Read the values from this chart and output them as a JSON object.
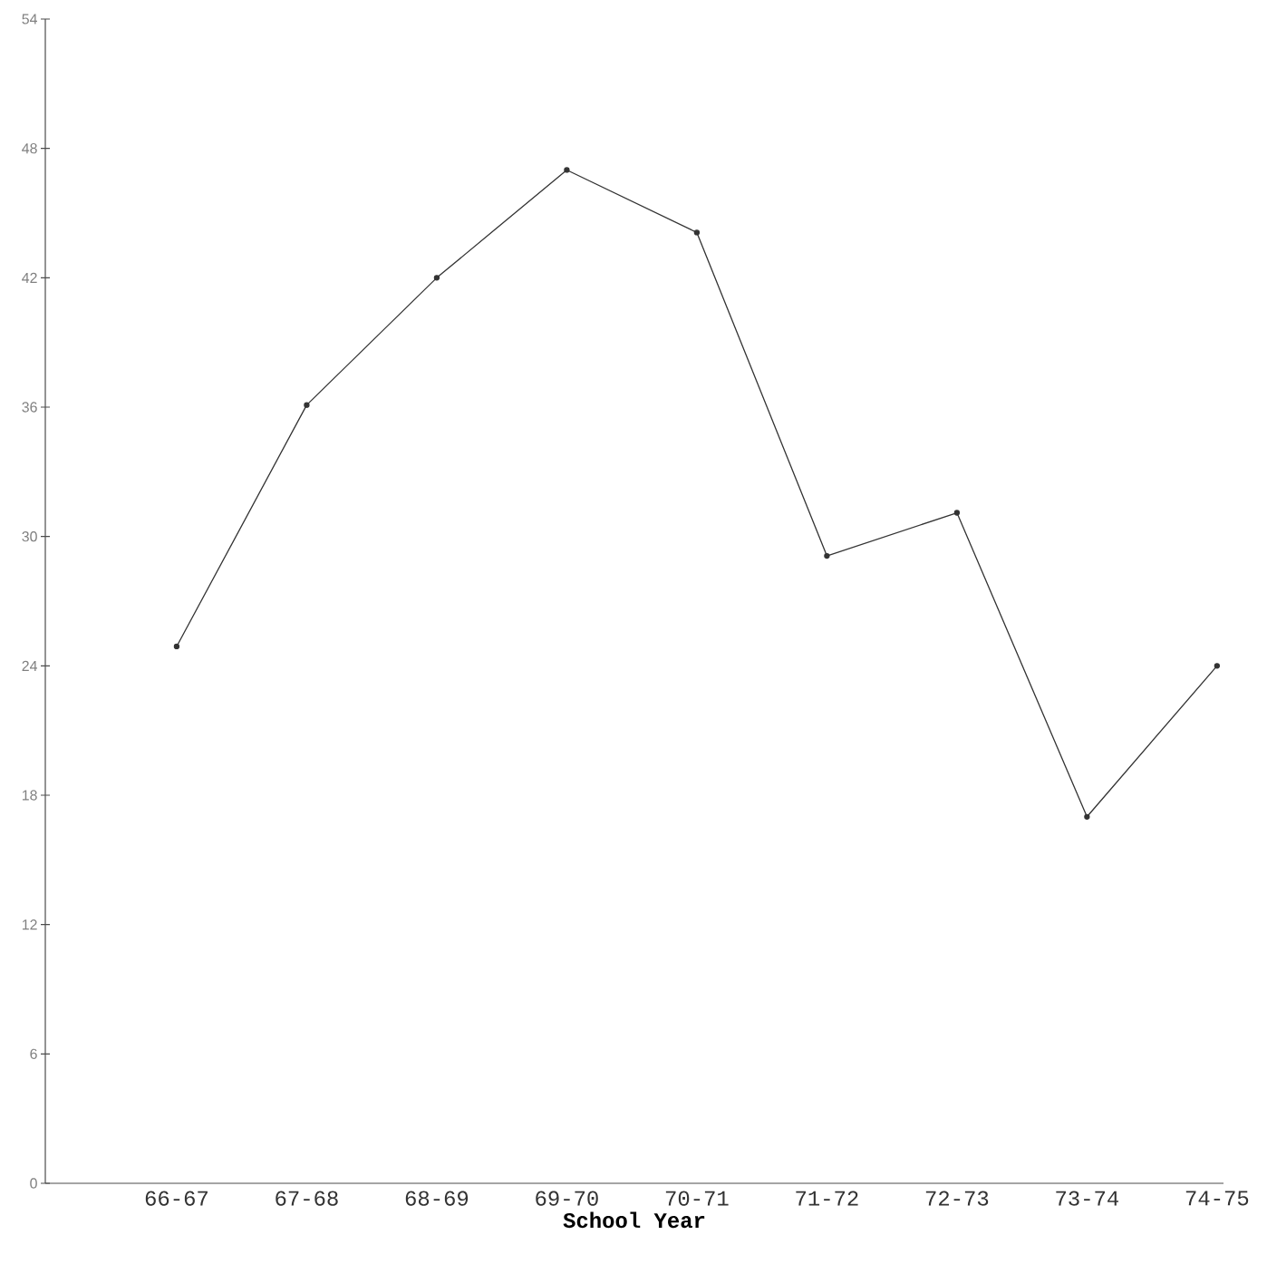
{
  "chart_data": {
    "type": "line",
    "xlabel": "School Year",
    "categories": [
      "66-67",
      "67-68",
      "68-69",
      "69-70",
      "70-71",
      "71-72",
      "72-73",
      "73-74",
      "74-75"
    ],
    "series": [
      {
        "color": "#333333",
        "values": [
          24.9,
          36.1,
          42.0,
          47.0,
          44.1,
          29.1,
          31.1,
          17.0,
          24.0
        ]
      }
    ],
    "ylim": [
      0,
      54
    ],
    "yticks": [
      0,
      6,
      12,
      18,
      24,
      30,
      36,
      42,
      48,
      54
    ],
    "marker": "circle",
    "line_style": "solid"
  }
}
